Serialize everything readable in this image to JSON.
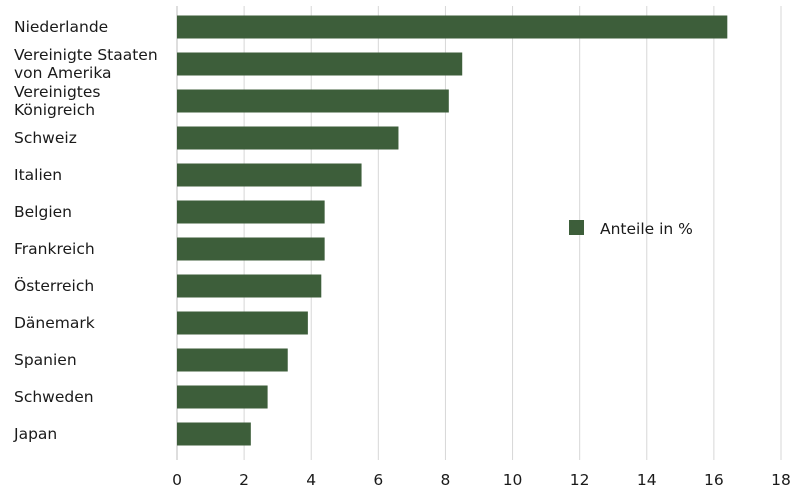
{
  "chart_data": {
    "type": "bar",
    "orientation": "horizontal",
    "categories": [
      "Niederlande",
      "Vereinigte Staaten von Amerika",
      "Vereinigtes Königreich",
      "Schweiz",
      "Italien",
      "Belgien",
      "Frankreich",
      "Österreich",
      "Dänemark",
      "Spanien",
      "Schweden",
      "Japan"
    ],
    "category_lines": [
      [
        "Niederlande"
      ],
      [
        "Vereinigte Staaten",
        "von Amerika"
      ],
      [
        "Vereinigtes",
        "Königreich"
      ],
      [
        "Schweiz"
      ],
      [
        "Italien"
      ],
      [
        "Belgien"
      ],
      [
        "Frankreich"
      ],
      [
        "Österreich"
      ],
      [
        "Dänemark"
      ],
      [
        "Spanien"
      ],
      [
        "Schweden"
      ],
      [
        "Japan"
      ]
    ],
    "series": [
      {
        "name": "Anteile in %",
        "color": "#3d5e3a",
        "values": [
          16.4,
          8.5,
          8.1,
          6.6,
          5.5,
          4.4,
          4.4,
          4.3,
          3.9,
          3.3,
          2.7,
          2.2
        ]
      }
    ],
    "xlim": [
      0,
      18
    ],
    "xticks": [
      "0",
      "2",
      "4",
      "6",
      "8",
      "10",
      "12",
      "14",
      "16",
      "18"
    ],
    "grid": true,
    "legend_position": "right-middle",
    "title": "",
    "xlabel": "",
    "ylabel": ""
  }
}
